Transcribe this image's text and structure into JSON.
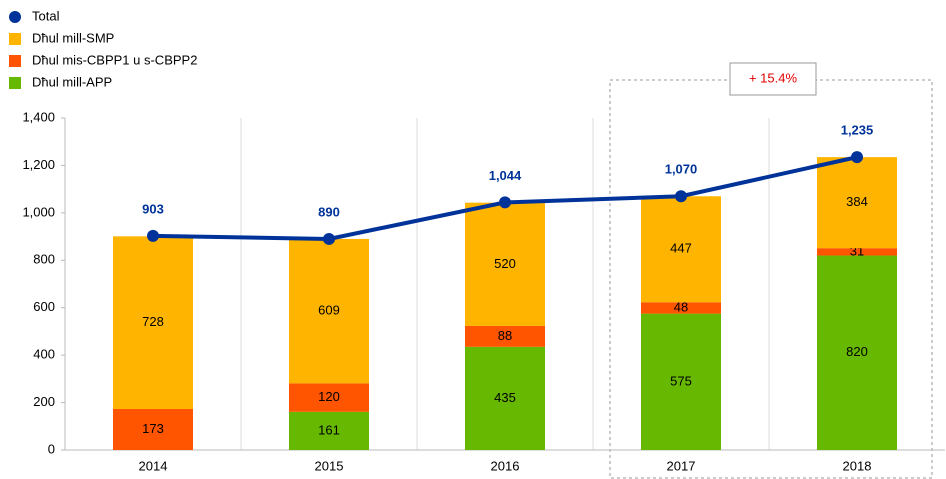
{
  "chart_data": {
    "type": "bar",
    "categories": [
      "2014",
      "2015",
      "2016",
      "2017",
      "2018"
    ],
    "series": [
      {
        "name": "Dħul mill-APP",
        "color": "#66b800",
        "values": [
          null,
          161,
          435,
          575,
          820
        ]
      },
      {
        "name": "Dħul mis-CBPP1 u s-CBPP2",
        "color": "#ff5500",
        "values": [
          173,
          120,
          88,
          48,
          31
        ]
      },
      {
        "name": "Dħul mill-SMP",
        "color": "#ffb400",
        "values": [
          728,
          609,
          520,
          447,
          384
        ]
      },
      {
        "name": "Total",
        "type": "line",
        "color": "#003399",
        "values": [
          903,
          890,
          1044,
          1070,
          1235
        ],
        "value_labels": [
          "903",
          "890",
          "1,044",
          "1,070",
          "1,235"
        ]
      }
    ],
    "annotation": "+ 15.4%",
    "ylim": [
      0,
      1400
    ],
    "yticks": [
      0,
      200,
      400,
      600,
      800,
      {
        "value": 1000,
        "label": "1,000"
      },
      {
        "value": 1200,
        "label": "1,200"
      },
      {
        "value": 1400,
        "label": "1,400"
      }
    ]
  }
}
